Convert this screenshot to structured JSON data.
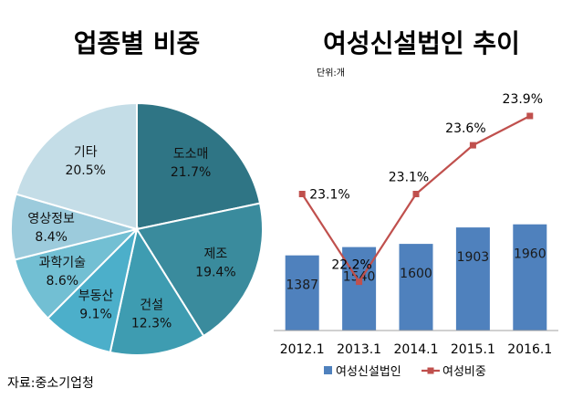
{
  "chart_data": [
    {
      "type": "pie",
      "title": "업종별 비중",
      "categories": [
        "도소매",
        "제조",
        "건설",
        "부동산",
        "과학기술",
        "영상정보",
        "기타"
      ],
      "values": [
        21.7,
        19.4,
        12.3,
        9.1,
        8.6,
        8.4,
        20.5
      ],
      "value_labels": [
        "21.7%",
        "19.4%",
        "12.3%",
        "9.1%",
        "8.6%",
        "8.4%",
        "20.5%"
      ],
      "colors": [
        "#2f7585",
        "#3a8b9d",
        "#3e9cb1",
        "#4cafca",
        "#72bfd3",
        "#9ccbdc",
        "#c4dde7"
      ],
      "source": "자료:중소기업청"
    },
    {
      "type": "bar+line",
      "title": "여성신설법인 추이",
      "unit": "단위:개",
      "categories": [
        "2012.1",
        "2013.1",
        "2014.1",
        "2015.1",
        "2016.1"
      ],
      "series": [
        {
          "name": "여성신설법인",
          "type": "bar",
          "color": "#4f81bd",
          "values": [
            1387,
            1540,
            1600,
            1903,
            1960
          ]
        },
        {
          "name": "여성비중",
          "type": "line",
          "color": "#c0504d",
          "values": [
            23.1,
            22.2,
            23.1,
            23.6,
            23.9
          ],
          "value_labels": [
            "23.1%",
            "22.2%",
            "23.1%",
            "23.6%",
            "23.9%"
          ]
        }
      ],
      "bar_ylim": [
        0,
        4500
      ],
      "line_ylim": [
        21.7,
        24.2
      ],
      "legend": "bottom"
    }
  ]
}
